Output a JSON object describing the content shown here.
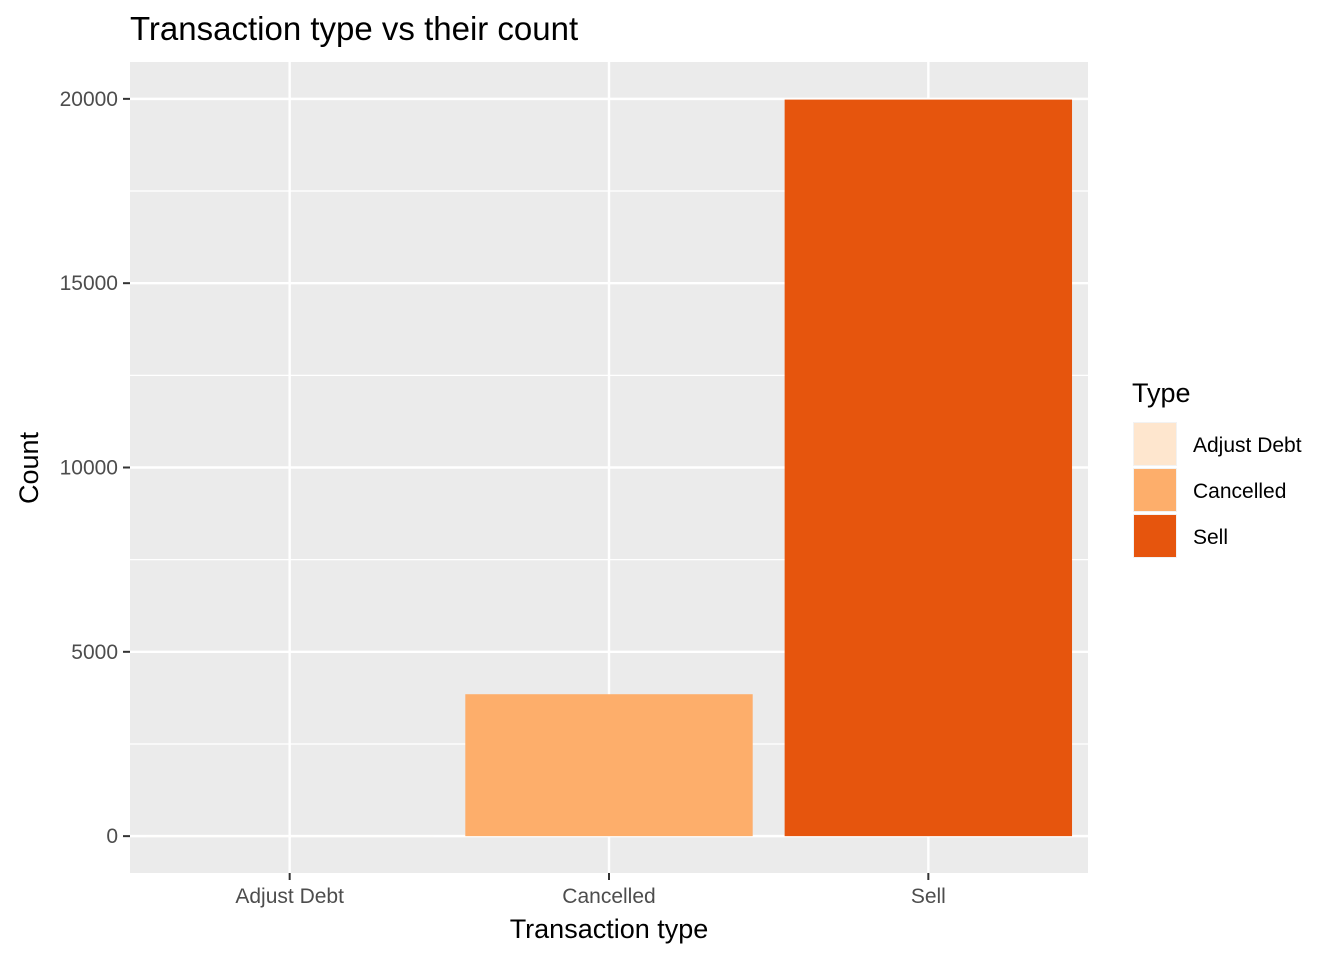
{
  "chart_data": {
    "type": "bar",
    "title": "Transaction type vs their count",
    "xlabel": "Transaction type",
    "ylabel": "Count",
    "categories": [
      "Adjust Debt",
      "Cancelled",
      "Sell"
    ],
    "values": [
      2,
      3850,
      19980
    ],
    "colors": [
      "#fee6ce",
      "#fdae6b",
      "#e6550d"
    ],
    "ylim": [
      -1000,
      21000
    ],
    "yticks": [
      0,
      5000,
      10000,
      15000,
      20000
    ],
    "ytick_labels": [
      "0",
      "5000",
      "10000",
      "15000",
      "20000"
    ],
    "grid": true,
    "panel_background": "#ebebeb",
    "legend": {
      "title": "Type",
      "position": "right",
      "entries": [
        "Adjust Debt",
        "Cancelled",
        "Sell"
      ]
    }
  }
}
